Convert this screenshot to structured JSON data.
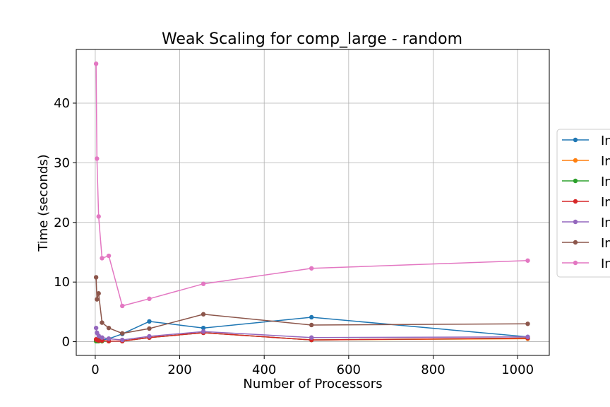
{
  "chart_data": {
    "type": "line",
    "title": "Weak Scaling for comp_large - random",
    "xlabel": "Number of Processors",
    "ylabel": "Time (seconds)",
    "xlim": [
      -45,
      1075
    ],
    "ylim": [
      -2.3,
      49
    ],
    "xticks": [
      0,
      200,
      400,
      600,
      800,
      1000
    ],
    "yticks": [
      0,
      10,
      20,
      30,
      40
    ],
    "grid": true,
    "legend_position": "right",
    "series": [
      {
        "name": "In",
        "color": "#1f77b4",
        "x": [
          2,
          4,
          8,
          16,
          32,
          64,
          128,
          256,
          512,
          1024
        ],
        "y": [
          0.2,
          0.3,
          0.3,
          0.3,
          0.5,
          1.3,
          3.4,
          2.3,
          4.1,
          0.8
        ]
      },
      {
        "name": "In",
        "color": "#ff7f0e",
        "x": [
          2,
          4,
          8,
          16,
          32,
          64,
          128,
          256,
          512,
          1024
        ],
        "y": [
          0.1,
          0.1,
          0.1,
          0.1,
          0.1,
          0.1,
          0.7,
          1.5,
          0.3,
          0.5
        ]
      },
      {
        "name": "In",
        "color": "#2ca02c",
        "x": [
          2,
          4,
          8,
          16,
          32,
          64,
          128,
          256,
          512,
          1024
        ],
        "y": [
          0.1,
          0.1,
          0.1,
          0.1,
          0.1,
          0.1,
          0.7,
          1.5,
          0.3,
          0.6
        ]
      },
      {
        "name": "In",
        "color": "#d62728",
        "x": [
          2,
          4,
          8,
          16,
          32,
          64,
          128,
          256,
          512,
          1024
        ],
        "y": [
          0.4,
          0.3,
          0.2,
          0.2,
          0.1,
          0.1,
          0.7,
          1.5,
          0.3,
          0.6
        ]
      },
      {
        "name": "In",
        "color": "#9467bd",
        "x": [
          2,
          4,
          8,
          16,
          32,
          64,
          128,
          256,
          512,
          1024
        ],
        "y": [
          2.3,
          1.5,
          1.0,
          0.7,
          0.5,
          0.3,
          0.9,
          1.7,
          0.7,
          0.8
        ]
      },
      {
        "name": "In",
        "color": "#8c564b",
        "x": [
          2,
          4,
          8,
          16,
          32,
          64,
          128,
          256,
          512,
          1024
        ],
        "y": [
          10.8,
          7.1,
          8.1,
          3.2,
          2.3,
          1.4,
          2.2,
          4.6,
          2.8,
          3.0
        ]
      },
      {
        "name": "In",
        "color": "#e377c2",
        "x": [
          2,
          4,
          8,
          16,
          32,
          64,
          128,
          256,
          512,
          1024
        ],
        "y": [
          46.6,
          30.7,
          21.0,
          14.0,
          14.4,
          6.0,
          7.2,
          9.7,
          12.3,
          13.6
        ]
      }
    ]
  }
}
